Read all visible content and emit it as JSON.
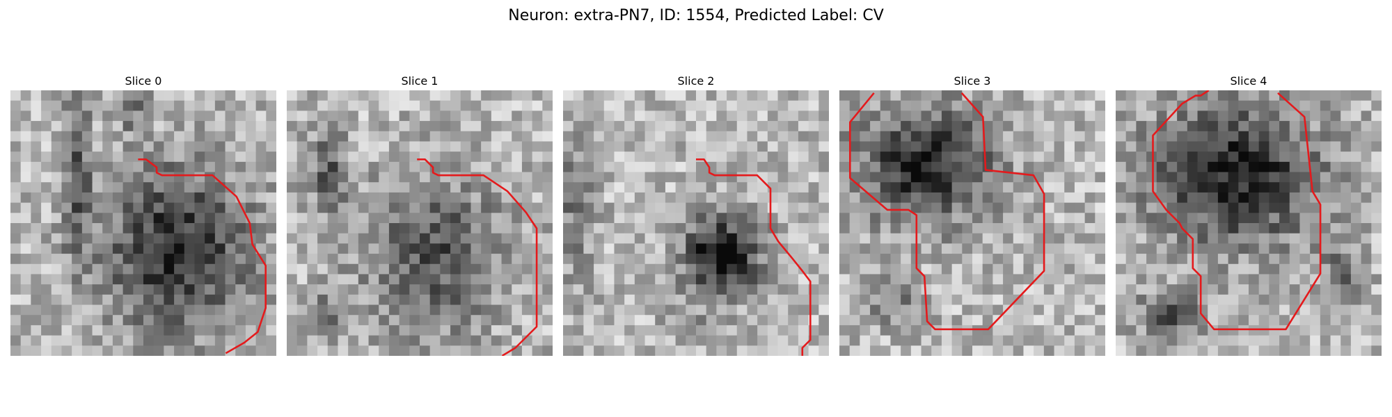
{
  "figure": {
    "title": "Neuron: extra-PN7, ID: 1554, Predicted Label: CV"
  },
  "panels": [
    {
      "title": "Slice 0"
    },
    {
      "title": "Slice 1"
    },
    {
      "title": "Slice 2"
    },
    {
      "title": "Slice 3"
    },
    {
      "title": "Slice 4"
    }
  ],
  "colors": {
    "contour": "#e41a1c",
    "background": "#ffffff"
  }
}
